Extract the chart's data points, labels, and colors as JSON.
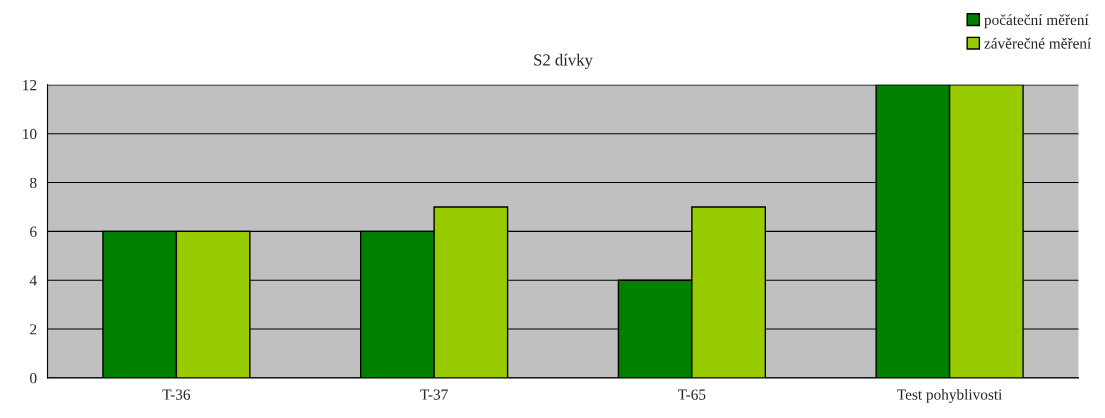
{
  "chart_data": {
    "type": "bar",
    "title": "S2 dívky",
    "categories": [
      "T-36",
      "T-37",
      "T-65",
      "Test pohyblivosti"
    ],
    "series": [
      {
        "name": "počáteční měření",
        "color": "#008000",
        "values": [
          6,
          6,
          4,
          12
        ]
      },
      {
        "name": "závěrečné měření",
        "color": "#99cc00",
        "values": [
          6,
          7,
          7,
          12
        ]
      }
    ],
    "ylim": [
      0,
      12
    ],
    "yticks": [
      0,
      2,
      4,
      6,
      8,
      10,
      12
    ],
    "grid": "y",
    "legend": "top right"
  }
}
